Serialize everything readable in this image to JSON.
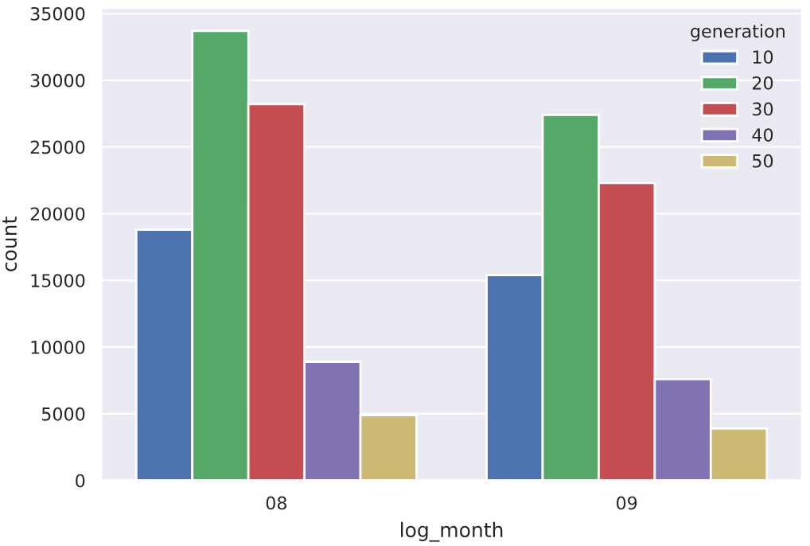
{
  "chart_data": {
    "type": "bar",
    "xlabel": "log_month",
    "ylabel": "count",
    "legend_title": "generation",
    "categories": [
      "08",
      "09"
    ],
    "series": [
      {
        "name": "10",
        "color": "#4c72b0",
        "values": [
          18800,
          15400
        ]
      },
      {
        "name": "20",
        "color": "#55a868",
        "values": [
          33700,
          27400
        ]
      },
      {
        "name": "30",
        "color": "#c44e52",
        "values": [
          28200,
          22300
        ]
      },
      {
        "name": "40",
        "color": "#8172b2",
        "values": [
          8900,
          7600
        ]
      },
      {
        "name": "50",
        "color": "#ccb974",
        "values": [
          4900,
          3900
        ]
      }
    ],
    "ylim": [
      0,
      35400
    ],
    "yticks": [
      0,
      5000,
      10000,
      15000,
      20000,
      25000,
      30000,
      35000
    ],
    "grid": "y",
    "legend": "top right"
  }
}
